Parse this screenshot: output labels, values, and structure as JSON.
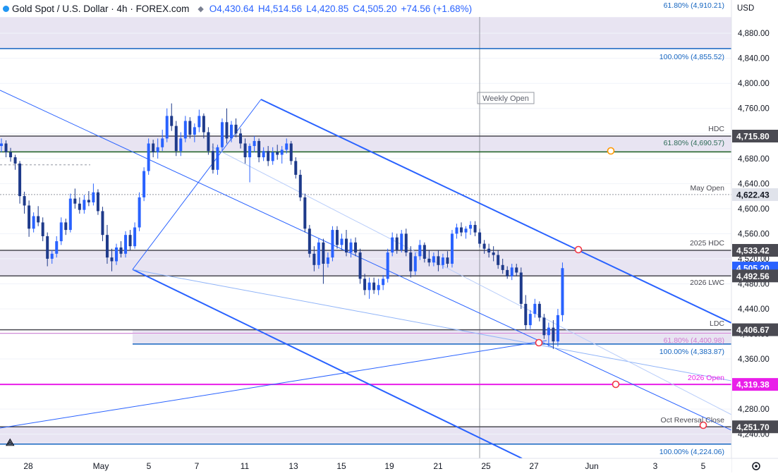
{
  "header": {
    "title": "Gold Spot / U.S. Dollar · 4h · FOREX.com",
    "open": "O4,430.64",
    "high": "H4,514.56",
    "low": "L4,420.85",
    "close": "C4,505.20",
    "change": "+74.56 (+1.68%)"
  },
  "currency": "USD",
  "colors": {
    "up": "#2962ff",
    "down": "#1e3a8a",
    "line": "#2962ff",
    "zone": "#e8e4f2",
    "magenta": "#e91ee9",
    "dark_label": "#4a4a52"
  },
  "chart_data": {
    "type": "candlestick",
    "symbol": "Gold Spot / U.S. Dollar",
    "interval": "4h",
    "y_axis": {
      "ticks": [
        "4,880.00",
        "4,840.00",
        "4,800.00",
        "4,760.00",
        "4,720.00",
        "4,680.00",
        "4,640.00",
        "4,600.00",
        "4,560.00",
        "4,520.00",
        "4,480.00",
        "4,440.00",
        "4,400.00",
        "4,360.00",
        "4,320.00",
        "4,280.00",
        "4,240.00"
      ],
      "ylim": [
        4210,
        4915
      ]
    },
    "x_axis": {
      "labels": [
        "28",
        "May",
        "5",
        "7",
        "11",
        "13",
        "15",
        "19",
        "21",
        "25",
        "27",
        "Jun",
        "3",
        "5"
      ]
    },
    "candles": [
      [
        0,
        4700,
        4712,
        4690,
        4704
      ],
      [
        1,
        4704,
        4709,
        4682,
        4690
      ],
      [
        2,
        4690,
        4697,
        4675,
        4682
      ],
      [
        3,
        4682,
        4686,
        4662,
        4672
      ],
      [
        4,
        4672,
        4676,
        4608,
        4620
      ],
      [
        5,
        4620,
        4627,
        4592,
        4605
      ],
      [
        6,
        4605,
        4613,
        4555,
        4568
      ],
      [
        7,
        4568,
        4594,
        4562,
        4588
      ],
      [
        8,
        4588,
        4604,
        4572,
        4578
      ],
      [
        9,
        4578,
        4586,
        4548,
        4556
      ],
      [
        10,
        4556,
        4562,
        4508,
        4520
      ],
      [
        11,
        4520,
        4534,
        4512,
        4528
      ],
      [
        12,
        4528,
        4556,
        4522,
        4548
      ],
      [
        13,
        4548,
        4586,
        4542,
        4578
      ],
      [
        14,
        4578,
        4584,
        4558,
        4566
      ],
      [
        15,
        4566,
        4624,
        4562,
        4616
      ],
      [
        16,
        4616,
        4632,
        4600,
        4608
      ],
      [
        17,
        4608,
        4618,
        4592,
        4598
      ],
      [
        18,
        4598,
        4622,
        4592,
        4614
      ],
      [
        19,
        4614,
        4628,
        4604,
        4610
      ],
      [
        20,
        4610,
        4640,
        4605,
        4626
      ],
      [
        21,
        4626,
        4631,
        4590,
        4596
      ],
      [
        22,
        4596,
        4603,
        4548,
        4558
      ],
      [
        23,
        4558,
        4574,
        4512,
        4522
      ],
      [
        24,
        4522,
        4536,
        4500,
        4516
      ],
      [
        25,
        4516,
        4544,
        4510,
        4538
      ],
      [
        26,
        4538,
        4548,
        4522,
        4528
      ],
      [
        27,
        4528,
        4564,
        4522,
        4558
      ],
      [
        28,
        4558,
        4566,
        4534,
        4540
      ],
      [
        29,
        4540,
        4578,
        4536,
        4570
      ],
      [
        30,
        4570,
        4626,
        4564,
        4618
      ],
      [
        31,
        4618,
        4666,
        4612,
        4660
      ],
      [
        32,
        4660,
        4712,
        4654,
        4704
      ],
      [
        33,
        4704,
        4710,
        4682,
        4690
      ],
      [
        34,
        4690,
        4712,
        4680,
        4698
      ],
      [
        35,
        4698,
        4726,
        4692,
        4712
      ],
      [
        36,
        4712,
        4760,
        4706,
        4748
      ],
      [
        37,
        4748,
        4768,
        4724,
        4732
      ],
      [
        38,
        4732,
        4740,
        4684,
        4692
      ],
      [
        39,
        4692,
        4722,
        4684,
        4712
      ],
      [
        40,
        4712,
        4748,
        4706,
        4740
      ],
      [
        41,
        4740,
        4746,
        4712,
        4718
      ],
      [
        42,
        4718,
        4736,
        4706,
        4730
      ],
      [
        43,
        4730,
        4758,
        4722,
        4748
      ],
      [
        44,
        4748,
        4752,
        4712,
        4722
      ],
      [
        45,
        4722,
        4730,
        4686,
        4692
      ],
      [
        46,
        4692,
        4704,
        4656,
        4662
      ],
      [
        47,
        4662,
        4702,
        4654,
        4698
      ],
      [
        48,
        4698,
        4744,
        4692,
        4738
      ],
      [
        49,
        4738,
        4760,
        4704,
        4712
      ],
      [
        50,
        4712,
        4740,
        4706,
        4734
      ],
      [
        51,
        4734,
        4744,
        4714,
        4720
      ],
      [
        52,
        4720,
        4728,
        4696,
        4704
      ],
      [
        53,
        4704,
        4712,
        4672,
        4682
      ],
      [
        54,
        4682,
        4704,
        4642,
        4700
      ],
      [
        55,
        4700,
        4716,
        4690,
        4708
      ],
      [
        56,
        4708,
        4712,
        4674,
        4682
      ],
      [
        57,
        4682,
        4698,
        4676,
        4692
      ],
      [
        58,
        4692,
        4700,
        4668,
        4676
      ],
      [
        59,
        4676,
        4698,
        4670,
        4690
      ],
      [
        60,
        4690,
        4702,
        4678,
        4686
      ],
      [
        61,
        4686,
        4700,
        4672,
        4694
      ],
      [
        62,
        4694,
        4712,
        4688,
        4704
      ],
      [
        63,
        4704,
        4708,
        4670,
        4676
      ],
      [
        64,
        4676,
        4682,
        4648,
        4654
      ],
      [
        65,
        4654,
        4662,
        4612,
        4618
      ],
      [
        66,
        4618,
        4624,
        4562,
        4568
      ],
      [
        67,
        4568,
        4574,
        4522,
        4528
      ],
      [
        68,
        4528,
        4540,
        4500,
        4510
      ],
      [
        69,
        4510,
        4552,
        4504,
        4546
      ],
      [
        70,
        4546,
        4552,
        4480,
        4512
      ],
      [
        71,
        4512,
        4530,
        4506,
        4522
      ],
      [
        72,
        4522,
        4572,
        4516,
        4566
      ],
      [
        73,
        4566,
        4572,
        4536,
        4542
      ],
      [
        74,
        4542,
        4560,
        4534,
        4552
      ],
      [
        75,
        4552,
        4566,
        4524,
        4530
      ],
      [
        76,
        4530,
        4552,
        4522,
        4546
      ],
      [
        77,
        4546,
        4554,
        4524,
        4530
      ],
      [
        78,
        4530,
        4536,
        4480,
        4488
      ],
      [
        79,
        4488,
        4496,
        4462,
        4470
      ],
      [
        80,
        4470,
        4490,
        4456,
        4482
      ],
      [
        81,
        4482,
        4490,
        4464,
        4470
      ],
      [
        82,
        4470,
        4488,
        4462,
        4478
      ],
      [
        83,
        4478,
        4494,
        4470,
        4488
      ],
      [
        84,
        4488,
        4536,
        4482,
        4530
      ],
      [
        85,
        4530,
        4562,
        4524,
        4554
      ],
      [
        86,
        4554,
        4560,
        4528,
        4534
      ],
      [
        87,
        4534,
        4566,
        4530,
        4560
      ],
      [
        88,
        4560,
        4568,
        4524,
        4530
      ],
      [
        89,
        4530,
        4540,
        4490,
        4500
      ],
      [
        90,
        4500,
        4530,
        4494,
        4524
      ],
      [
        91,
        4524,
        4550,
        4518,
        4542
      ],
      [
        92,
        4542,
        4546,
        4514,
        4520
      ],
      [
        93,
        4520,
        4534,
        4508,
        4514
      ],
      [
        94,
        4514,
        4530,
        4508,
        4524
      ],
      [
        95,
        4524,
        4534,
        4500,
        4510
      ],
      [
        96,
        4510,
        4528,
        4504,
        4522
      ],
      [
        97,
        4522,
        4532,
        4506,
        4512
      ],
      [
        98,
        4512,
        4566,
        4506,
        4560
      ],
      [
        99,
        4560,
        4576,
        4552,
        4570
      ],
      [
        100,
        4570,
        4578,
        4556,
        4562
      ],
      [
        101,
        4562,
        4572,
        4552,
        4568
      ],
      [
        102,
        4568,
        4580,
        4558,
        4574
      ],
      [
        103,
        4574,
        4580,
        4556,
        4562
      ],
      [
        104,
        4562,
        4568,
        4538,
        4544
      ],
      [
        105,
        4544,
        4550,
        4528,
        4536
      ],
      [
        106,
        4536,
        4544,
        4522,
        4530
      ],
      [
        107,
        4530,
        4540,
        4516,
        4526
      ],
      [
        108,
        4526,
        4534,
        4504,
        4510
      ],
      [
        109,
        4510,
        4520,
        4496,
        4502
      ],
      [
        110,
        4502,
        4508,
        4488,
        4492
      ],
      [
        111,
        4492,
        4512,
        4486,
        4506
      ],
      [
        112,
        4506,
        4512,
        4492,
        4498
      ],
      [
        113,
        4498,
        4506,
        4440,
        4448
      ],
      [
        114,
        4448,
        4462,
        4406,
        4414
      ],
      [
        115,
        4414,
        4438,
        4408,
        4432
      ],
      [
        116,
        4432,
        4456,
        4426,
        4448
      ],
      [
        117,
        4448,
        4452,
        4420,
        4426
      ],
      [
        118,
        4426,
        4432,
        4392,
        4398
      ],
      [
        119,
        4398,
        4418,
        4380,
        4410
      ],
      [
        120,
        4410,
        4422,
        4376,
        4388
      ],
      [
        121,
        4388,
        4440,
        4380,
        4430
      ],
      [
        122,
        4430,
        4514,
        4420,
        4505
      ]
    ],
    "horizontal_levels": [
      {
        "price": 4910.21,
        "label": "61.80% (4,910.21)"
      },
      {
        "price": 4855.52,
        "label": "100.00% (4,855.52)"
      },
      {
        "price": 4715.8,
        "label": "HDC",
        "badge": "4,715.80"
      },
      {
        "price": 4690.57,
        "label": "61.80% (4,690.57)"
      },
      {
        "price": 4622.43,
        "label": "May Open",
        "badge": "4,622.43"
      },
      {
        "price": 4533.42,
        "label": "2025 HDC",
        "badge": "4,533.42"
      },
      {
        "price": 4492.56,
        "label": "2026 LWC",
        "badge": "4,492.56"
      },
      {
        "price": 4406.67,
        "label": "LDC",
        "badge": "4,406.67"
      },
      {
        "price": 4400.98,
        "label": "61.80% (4,400.98)"
      },
      {
        "price": 4383.87,
        "label": "100.00% (4,383.87)"
      },
      {
        "price": 4319.38,
        "label": "2026 Open",
        "badge": "4,319.38"
      },
      {
        "price": 4251.7,
        "label": "Oct Reversal Close",
        "badge": "4,251.70"
      },
      {
        "price": 4224.06,
        "label": "100.00% (4,224.06)"
      }
    ],
    "current_price": {
      "price": 4505.2,
      "label": "4,505.20"
    },
    "annotations": [
      "Weekly Open"
    ]
  }
}
